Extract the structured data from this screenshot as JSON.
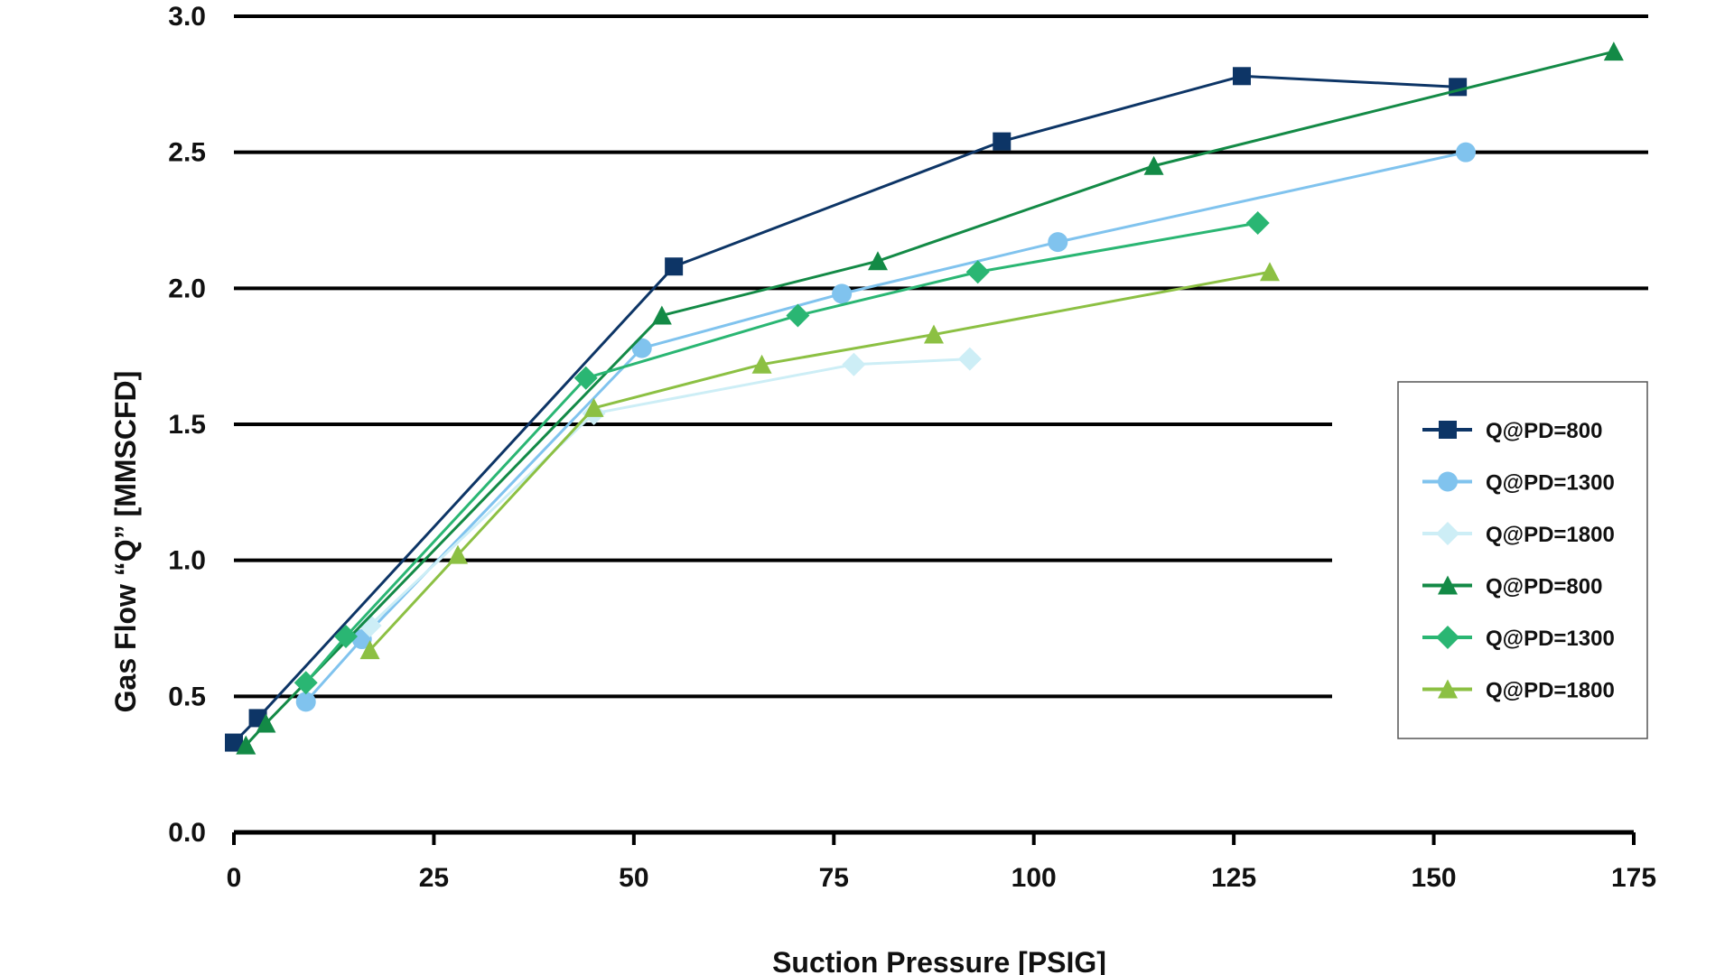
{
  "chart_data": {
    "type": "line",
    "xlabel": "Suction Pressure [PSIG]",
    "ylabel": "Gas Flow “Q” [MMSCFD]",
    "xlim": [
      0,
      175
    ],
    "ylim": [
      0,
      3.0
    ],
    "x_ticks": [
      "0",
      "25",
      "50",
      "75",
      "100",
      "125",
      "150",
      "175"
    ],
    "y_ticks": [
      "0.0",
      "0.5",
      "1.0",
      "1.5",
      "2.0",
      "2.5",
      "3.0"
    ],
    "grid": "horizontal",
    "legend_position": "right",
    "series": [
      {
        "name": "Q@PD=800",
        "marker": "square",
        "color": "#0d3566",
        "points": [
          [
            0,
            0.33
          ],
          [
            3,
            0.42
          ],
          [
            55,
            2.08
          ],
          [
            96,
            2.54
          ],
          [
            126,
            2.78
          ],
          [
            153,
            2.74
          ]
        ]
      },
      {
        "name": "Q@PD=1300",
        "marker": "circle",
        "color": "#80c3ee",
        "points": [
          [
            9,
            0.48
          ],
          [
            16,
            0.71
          ],
          [
            51,
            1.78
          ],
          [
            76,
            1.98
          ],
          [
            103,
            2.17
          ],
          [
            154,
            2.5
          ]
        ]
      },
      {
        "name": "Q@PD=1800",
        "marker": "diamond",
        "color": "#cdeef6",
        "points": [
          [
            17,
            0.76
          ],
          [
            45,
            1.54
          ],
          [
            77.5,
            1.72
          ],
          [
            92,
            1.74
          ]
        ]
      },
      {
        "name": "Q@PD=800",
        "marker": "triangle",
        "color": "#138a46",
        "points": [
          [
            1.5,
            0.32
          ],
          [
            4,
            0.4
          ],
          [
            53.5,
            1.9
          ],
          [
            80.5,
            2.1
          ],
          [
            115,
            2.45
          ],
          [
            172.5,
            2.87
          ]
        ]
      },
      {
        "name": "Q@PD=1300",
        "marker": "diamond",
        "color": "#2ab673",
        "points": [
          [
            9,
            0.55
          ],
          [
            14,
            0.72
          ],
          [
            44,
            1.67
          ],
          [
            70.5,
            1.9
          ],
          [
            93,
            2.06
          ],
          [
            128,
            2.24
          ]
        ]
      },
      {
        "name": "Q@PD=1800",
        "marker": "triangle",
        "color": "#8cc043",
        "points": [
          [
            17,
            0.67
          ],
          [
            28,
            1.02
          ],
          [
            45,
            1.56
          ],
          [
            66,
            1.72
          ],
          [
            87.5,
            1.83
          ],
          [
            129.5,
            2.06
          ]
        ]
      }
    ]
  }
}
